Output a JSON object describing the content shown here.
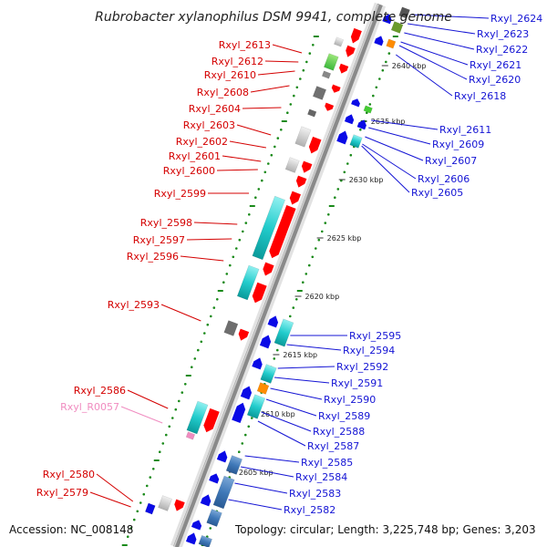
{
  "title": "Rubrobacter xylanophilus DSM 9941, complete genome",
  "accession_text": "Accession: NC_008148",
  "summary_text": "Topology: circular; Length: 3,225,748 bp; Genes: 3,203",
  "colors": {
    "forward_label": "#d40000",
    "reverse_label": "#1414d4",
    "rna_label": "#f08cc0",
    "forward_gene": "#ff0000",
    "reverse_gene": "#0a0ae6",
    "tick": "#1a8a1a"
  },
  "ruler_labels": [
    "2640 kbp",
    "2635 kbp",
    "2630 kbp",
    "2625 kbp",
    "2620 kbp",
    "2615 kbp",
    "2610 kbp",
    "2605 kbp"
  ],
  "left_labels": [
    "Rxyl_2613",
    "Rxyl_2612",
    "Rxyl_2610",
    "Rxyl_2608",
    "Rxyl_2604",
    "Rxyl_2603",
    "Rxyl_2602",
    "Rxyl_2601",
    "Rxyl_2600",
    "Rxyl_2599",
    "Rxyl_2598",
    "Rxyl_2597",
    "Rxyl_2596",
    "Rxyl_2593",
    "Rxyl_2586",
    "Rxyl_R0057",
    "Rxyl_2580",
    "Rxyl_2579"
  ],
  "right_labels": [
    "Rxyl_2624",
    "Rxyl_2623",
    "Rxyl_2622",
    "Rxyl_2621",
    "Rxyl_2620",
    "Rxyl_2618",
    "Rxyl_2611",
    "Rxyl_2609",
    "Rxyl_2607",
    "Rxyl_2606",
    "Rxyl_2605",
    "Rxyl_2595",
    "Rxyl_2594",
    "Rxyl_2592",
    "Rxyl_2591",
    "Rxyl_2590",
    "Rxyl_2589",
    "Rxyl_2588",
    "Rxyl_2587",
    "Rxyl_2585",
    "Rxyl_2584",
    "Rxyl_2583",
    "Rxyl_2582"
  ]
}
